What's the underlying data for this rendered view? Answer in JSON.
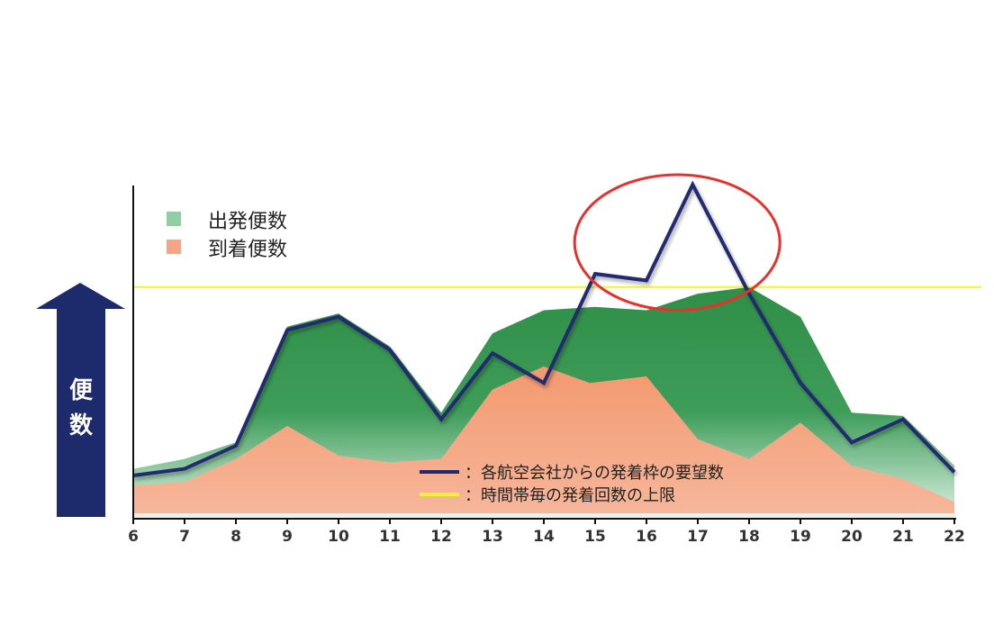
{
  "chart_data": {
    "type": "area",
    "ylabel": "便数",
    "x": [
      6,
      7,
      8,
      9,
      10,
      11,
      12,
      13,
      14,
      15,
      16,
      17,
      18,
      19,
      20,
      21,
      22
    ],
    "ylim": [
      0,
      100
    ],
    "series": [
      {
        "name": "出発便数",
        "kind": "area",
        "color": "#3a9a55",
        "legend_color": "#8ecfa3",
        "x": [
          6,
          7,
          8,
          9,
          10,
          11,
          12,
          13,
          14,
          15,
          16,
          17,
          18,
          19,
          20,
          21,
          22
        ],
        "values": [
          14,
          17,
          22,
          57,
          61,
          51,
          31,
          55,
          62,
          63,
          62,
          67,
          69,
          60,
          31,
          30,
          15
        ]
      },
      {
        "name": "到着便数",
        "kind": "area",
        "color": "#f4a585",
        "legend_color": "#f4a585",
        "x": [
          6,
          7,
          8,
          9,
          10,
          11,
          12,
          13,
          14,
          14.9,
          16,
          17,
          18,
          19,
          20,
          21,
          22
        ],
        "values": [
          9,
          10,
          17,
          27,
          18,
          16,
          17,
          38,
          45,
          40,
          42,
          23,
          17,
          28,
          15,
          11,
          4
        ]
      },
      {
        "name": "各航空会社からの発着枠の要望数",
        "kind": "line",
        "color": "#232970",
        "x": [
          6,
          7,
          8,
          9,
          10,
          11,
          12,
          13,
          14,
          15,
          16,
          16.9,
          18,
          19,
          20,
          21,
          22
        ],
        "values": [
          12,
          14,
          21,
          56,
          60,
          50,
          29,
          49,
          40,
          73,
          71,
          100,
          67,
          40,
          22,
          29,
          13
        ]
      },
      {
        "name": "時間帯毎の発着回数の上限",
        "kind": "hline",
        "color": "#f4f230",
        "value": 69
      }
    ],
    "annotations": [
      {
        "type": "ellipse",
        "color": "#e5322d",
        "x_range": [
          14.6,
          18.6
        ],
        "y_range": [
          62,
          103
        ]
      }
    ],
    "legend": [
      {
        "label": "出発便数",
        "color": "#8ecfa3",
        "shape": "square"
      },
      {
        "label": "到着便数",
        "color": "#f4a585",
        "shape": "square"
      },
      {
        "label": "：各航空会社からの発着枠の要望数",
        "color": "#232970",
        "shape": "line"
      },
      {
        "label": "：時間帯毎の発着回数の上限",
        "color": "#f4f230",
        "shape": "line"
      }
    ],
    "grid": false
  }
}
